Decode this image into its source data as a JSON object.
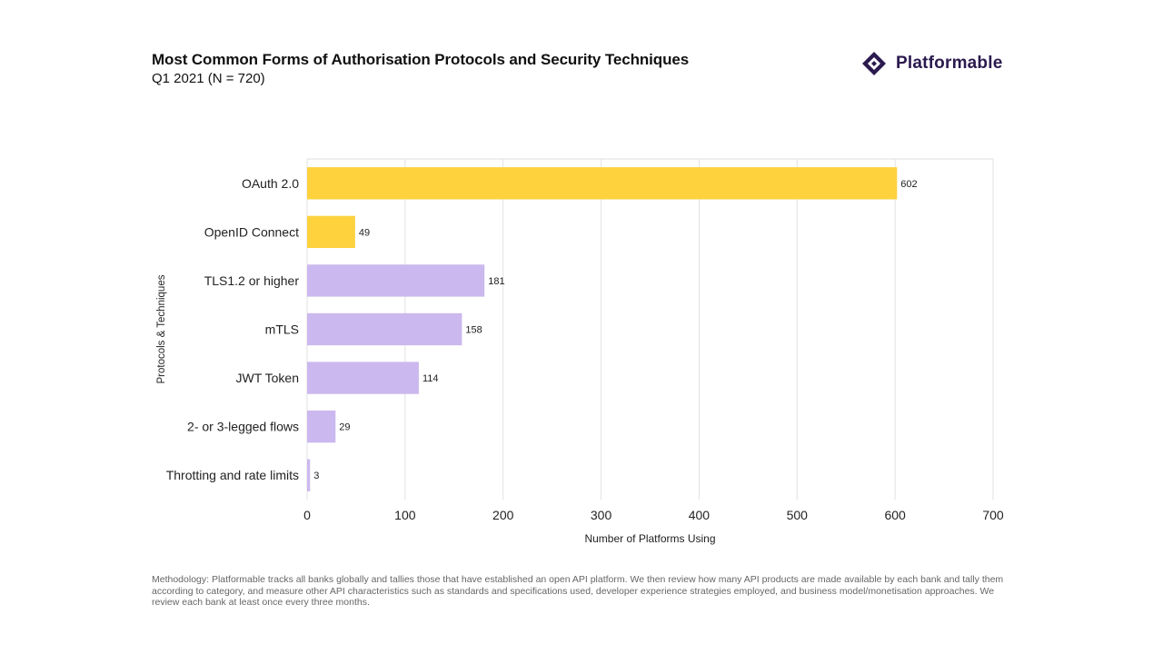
{
  "header": {
    "title": "Most Common Forms of Authorisation Protocols and Security Techniques",
    "subtitle": "Q1 2021 (N = 720)"
  },
  "logo": {
    "name": "Platformable",
    "icon": "diamond-logo-icon",
    "color": "#2b1a4e"
  },
  "chart_data": {
    "type": "bar",
    "orientation": "horizontal",
    "title": "Most Common Forms of Authorisation Protocols and Security Techniques",
    "subtitle": "Q1 2021 (N = 720)",
    "xlabel": "Number of Platforms Using",
    "ylabel": "Protocols & Techniques",
    "xlim": [
      0,
      700
    ],
    "xticks": [
      "0",
      "100",
      "200",
      "300",
      "400",
      "500",
      "600",
      "700"
    ],
    "grid": true,
    "categories": [
      "OAuth 2.0",
      "OpenID Connect",
      "TLS1.2 or higher",
      "mTLS",
      "JWT Token",
      "2- or 3-legged flows",
      "Throtting and rate limits"
    ],
    "values": [
      602,
      49,
      181,
      158,
      114,
      29,
      3
    ],
    "colors": [
      "#fdd23d",
      "#fdd23d",
      "#cbb8ee",
      "#cbb8ee",
      "#cbb8ee",
      "#cbb8ee",
      "#cbb8ee"
    ]
  },
  "footer": {
    "methodology": "Methodology: Platformable tracks all banks globally and tallies those that have established an open API platform. We then review how many API products are made available by each bank and tally them according to category, and measure other API characteristics such as standards and specifications used, developer experience strategies employed, and business model/monetisation approaches. We review each bank at least once every three months."
  }
}
